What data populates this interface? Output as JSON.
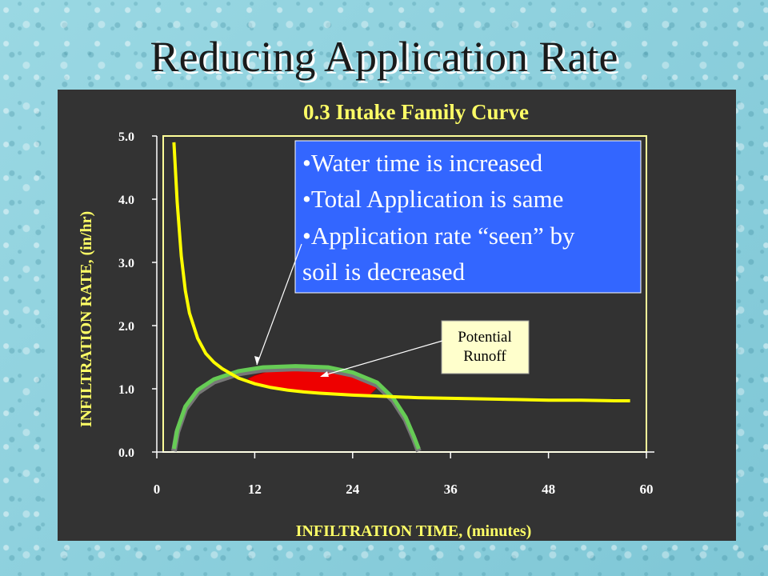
{
  "slide": {
    "title": "Reducing Application Rate"
  },
  "chart_data": {
    "type": "line",
    "title": "0.3 Intake Family Curve",
    "xlabel": "INFILTRATION  TIME, (minutes)",
    "ylabel": "INFILTRATION RATE, (in/hr)",
    "xlim": [
      0,
      60
    ],
    "ylim": [
      0,
      5
    ],
    "x_ticks": [
      "0",
      "12",
      "24",
      "36",
      "48",
      "60"
    ],
    "y_ticks": [
      "0.0",
      "1.0",
      "2.0",
      "3.0",
      "4.0",
      "5.0"
    ],
    "grid": false,
    "series": [
      {
        "color": "#ffff00",
        "x": [
          2.1,
          2.5,
          3,
          3.5,
          4,
          5,
          6,
          7,
          8,
          10,
          12,
          14,
          16,
          18,
          20,
          24,
          28,
          32,
          36,
          40,
          44,
          48,
          52,
          56,
          58
        ],
        "values": [
          4.9,
          3.95,
          3.1,
          2.55,
          2.2,
          1.8,
          1.56,
          1.42,
          1.32,
          1.17,
          1.08,
          1.02,
          0.98,
          0.95,
          0.93,
          0.9,
          0.88,
          0.86,
          0.85,
          0.84,
          0.83,
          0.82,
          0.82,
          0.81,
          0.81
        ]
      },
      {
        "color": "#66cc55",
        "x": [
          2.1,
          2.5,
          3.5,
          5,
          7,
          10,
          13,
          17,
          21,
          24,
          27,
          29,
          30.5,
          31.5,
          32.1
        ],
        "values": [
          0.05,
          0.35,
          0.72,
          0.98,
          1.15,
          1.28,
          1.34,
          1.36,
          1.34,
          1.26,
          1.1,
          0.85,
          0.55,
          0.25,
          0.05
        ]
      }
    ],
    "shaded_region": {
      "label": "Potential Runoff",
      "color": "#ee0000",
      "x": [
        11.2,
        12,
        14,
        16,
        18,
        20,
        22,
        24,
        26,
        27.4
      ],
      "upper": [
        1.16,
        1.21,
        1.29,
        1.33,
        1.35,
        1.34,
        1.31,
        1.26,
        1.17,
        1.07
      ],
      "lower": [
        1.16,
        1.08,
        1.02,
        0.98,
        0.95,
        0.93,
        0.91,
        0.9,
        0.89,
        1.07
      ]
    },
    "callouts": {
      "box_color": "#3366ff",
      "bullets": [
        "Water time is increased",
        "Total Application is same",
        "Application rate “seen” by",
        "soil is decreased"
      ],
      "runoff_label_lines": [
        "Potential",
        "Runoff"
      ]
    }
  }
}
